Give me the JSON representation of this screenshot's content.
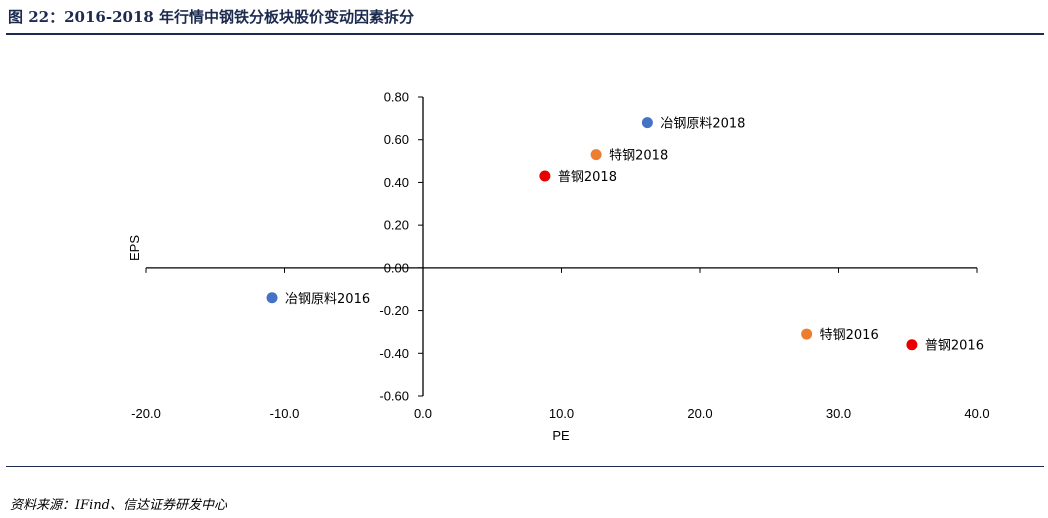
{
  "header": {
    "title": "图 22：2016-2018 年行情中钢铁分板块股价变动因素拆分"
  },
  "footer": {
    "source": "资料来源：IFind、信达证券研发中心"
  },
  "colors": {
    "rule": "#1b2a4e",
    "axis": "#000000"
  },
  "chart_data": {
    "type": "scatter",
    "title": "",
    "xlabel": "PE",
    "ylabel": "EPS",
    "xlim": [
      -20,
      40
    ],
    "ylim": [
      -0.6,
      0.8
    ],
    "x_ticks": [
      -20,
      -10,
      0,
      10,
      20,
      30,
      40
    ],
    "x_tick_labels": [
      "-20.0",
      "-10.0",
      "0.0",
      "10.0",
      "20.0",
      "30.0",
      "40.0"
    ],
    "y_ticks": [
      0.8,
      0.6,
      0.4,
      0.2,
      0.0,
      -0.2,
      -0.4,
      -0.6
    ],
    "y_tick_labels": [
      "0.80",
      "0.60",
      "0.40",
      "0.20",
      "0.00",
      "-0.20",
      "-0.40",
      "-0.60"
    ],
    "grid": false,
    "legend": "none",
    "points": [
      {
        "label": "冶钢原料2018",
        "x": 16.2,
        "y": 0.68,
        "color": "#4472C4"
      },
      {
        "label": "特钢2018",
        "x": 12.5,
        "y": 0.53,
        "color": "#ED7D31"
      },
      {
        "label": "普钢2018",
        "x": 8.8,
        "y": 0.43,
        "color": "#E80000"
      },
      {
        "label": "冶钢原料2016",
        "x": -10.9,
        "y": -0.14,
        "color": "#4472C4"
      },
      {
        "label": "特钢2016",
        "x": 27.7,
        "y": -0.31,
        "color": "#ED7D31"
      },
      {
        "label": "普钢2016",
        "x": 35.3,
        "y": -0.36,
        "color": "#E80000"
      }
    ]
  }
}
